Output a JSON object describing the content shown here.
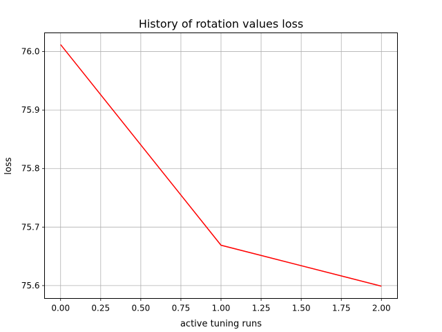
{
  "chart_data": {
    "type": "line",
    "title": "History of rotation values loss",
    "xlabel": "active tuning runs",
    "ylabel": "loss",
    "xlim": [
      -0.1,
      2.1
    ],
    "ylim": [
      75.578,
      76.032
    ],
    "x_ticks": [
      "0.00",
      "0.25",
      "0.50",
      "0.75",
      "1.00",
      "1.25",
      "1.50",
      "1.75",
      "2.00"
    ],
    "y_ticks": [
      "75.6",
      "75.7",
      "75.8",
      "75.9",
      "76.0"
    ],
    "grid": true,
    "series": [
      {
        "color": "#ff0000",
        "x": [
          0,
          1,
          2
        ],
        "y": [
          76.012,
          75.669,
          75.599
        ]
      }
    ]
  }
}
